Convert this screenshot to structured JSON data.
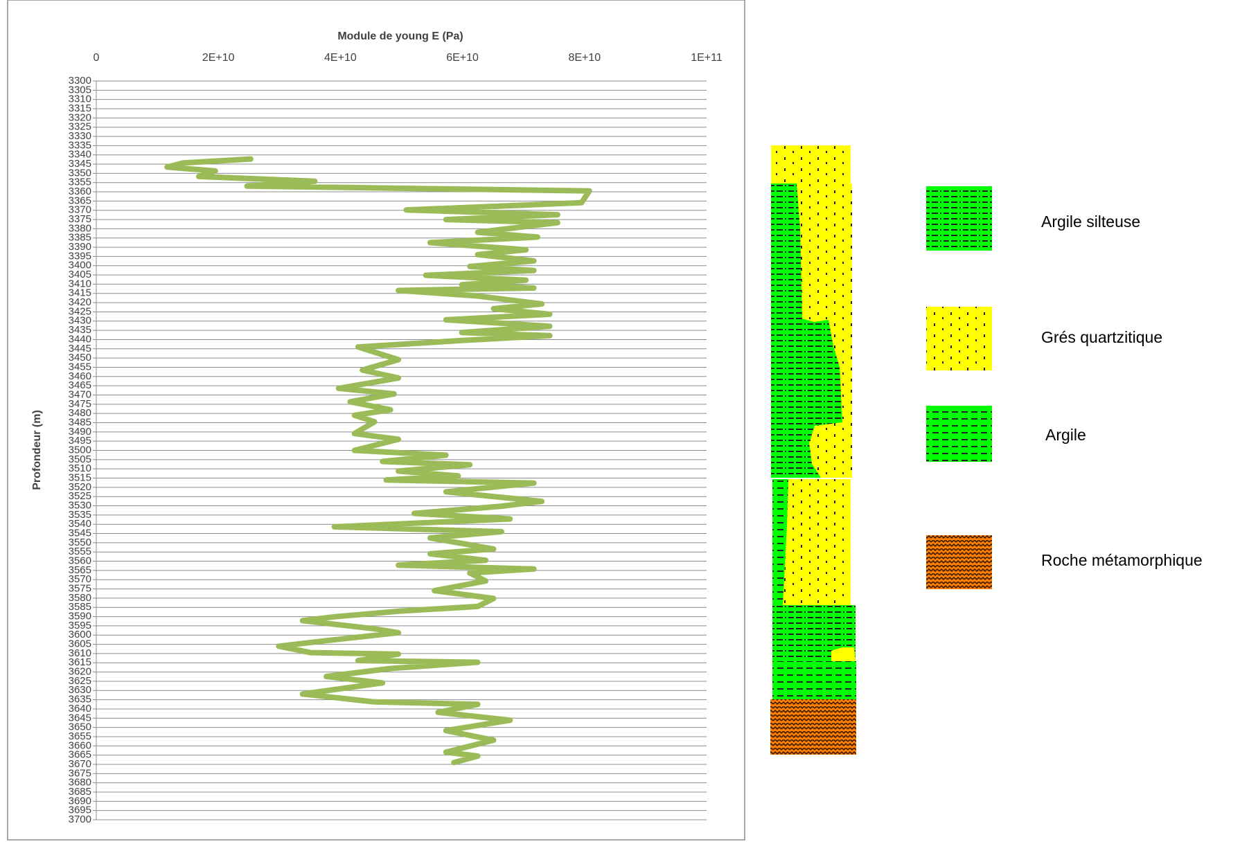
{
  "chart_data": {
    "type": "line",
    "title": "Module de young E (Pa)",
    "y_label": "Profondeur (m)",
    "color": "#9bbb59",
    "xlim": [
      0,
      100000000000
    ],
    "xticks": [
      0,
      {
        "value": 20000000000,
        "label": "2E+10"
      },
      {
        "value": 40000000000,
        "label": "4E+10"
      },
      {
        "value": 60000000000,
        "label": "6E+10"
      },
      {
        "value": 80000000000,
        "label": "8E+10"
      },
      {
        "value": 100000000000,
        "label": "1E+11"
      }
    ],
    "ylim": [
      3300,
      3700
    ],
    "y_inverted": true,
    "yticks": [
      3300,
      3305,
      3310,
      3315,
      3320,
      3325,
      3330,
      3335,
      3340,
      3345,
      3350,
      3355,
      3360,
      3365,
      3370,
      3375,
      3380,
      3385,
      3390,
      3395,
      3400,
      3405,
      3410,
      3415,
      3420,
      3425,
      3430,
      3435,
      3440,
      3445,
      3450,
      3455,
      3460,
      3465,
      3470,
      3475,
      3480,
      3485,
      3490,
      3495,
      3500,
      3505,
      3510,
      3515,
      3520,
      3525,
      3530,
      3535,
      3540,
      3545,
      3550,
      3555,
      3560,
      3565,
      3570,
      3575,
      3580,
      3585,
      3590,
      3595,
      3600,
      3605,
      3610,
      3615,
      3620,
      3625,
      3630,
      3635,
      3640,
      3645,
      3650,
      3655,
      3660,
      3665,
      3670,
      3675,
      3680,
      3685,
      3690,
      3695,
      3700
    ],
    "grid": true,
    "y": [
      3342.2,
      3344.4,
      3346.6,
      3348.7,
      3351.7,
      3354.3,
      3356.9,
      3359.5,
      3365.9,
      3369.8,
      3372.4,
      3375.0,
      3376.7,
      3381.9,
      3384.5,
      3387.5,
      3391.4,
      3394.0,
      3397.4,
      3400.4,
      3402.6,
      3405.2,
      3407.8,
      3410.3,
      3412.1,
      3413.4,
      3416.4,
      3420.7,
      3423.3,
      3426.3,
      3429.3,
      3432.8,
      3436.2,
      3437.9,
      3440.5,
      3444.0,
      3450.9,
      3456.5,
      3460.8,
      3466.4,
      3469.4,
      3473.7,
      3478.0,
      3481.0,
      3484.5,
      3490.9,
      3494.0,
      3500.0,
      3502.6,
      3506.0,
      3507.8,
      3511.2,
      3513.8,
      3516.0,
      3517.7,
      3522.4,
      3527.6,
      3530.2,
      3534.1,
      3537.1,
      3541.4,
      3544.0,
      3547.4,
      3553.4,
      3556.0,
      3559.5,
      3562.1,
      3564.2,
      3566.4,
      3570.7,
      3575.9,
      3580.2,
      3584.5,
      3587.1,
      3590.1,
      3592.2,
      3596.6,
      3598.7,
      3603.0,
      3606.0,
      3609.5,
      3610.3,
      3613.8,
      3614.7,
      3618.1,
      3622.4,
      3625.9,
      3631.9,
      3636.2,
      3637.5,
      3641.8,
      3646.1,
      3651.7,
      3656.9,
      3663.4,
      3665.5,
      3669.0
    ],
    "values": [
      25300000000,
      14200000000,
      11600000000,
      19500000000,
      16800000000,
      35800000000,
      24700000000,
      80800000000,
      79500000000,
      50800000000,
      75600000000,
      57300000000,
      75600000000,
      62500000000,
      72300000000,
      54700000000,
      70400000000,
      62500000000,
      71700000000,
      61200000000,
      71700000000,
      54000000000,
      70400000000,
      59900000000,
      71700000000,
      49500000000,
      62500000000,
      73000000000,
      65100000000,
      74300000000,
      57300000000,
      74300000000,
      59900000000,
      74300000000,
      59900000000,
      42900000000,
      49500000000,
      43600000000,
      49500000000,
      39700000000,
      48800000000,
      41600000000,
      48200000000,
      42300000000,
      45600000000,
      42300000000,
      49500000000,
      42300000000,
      57300000000,
      46900000000,
      61200000000,
      49500000000,
      59300000000,
      47500000000,
      71700000000,
      57300000000,
      73000000000,
      66400000000,
      52100000000,
      67800000000,
      39000000000,
      66400000000,
      54700000000,
      65100000000,
      54700000000,
      63800000000,
      49500000000,
      71700000000,
      61200000000,
      63800000000,
      55400000000,
      65100000000,
      62500000000,
      49500000000,
      39000000000,
      33800000000,
      45600000000,
      49500000000,
      37700000000,
      29900000000,
      35100000000,
      49500000000,
      42900000000,
      62500000000,
      48200000000,
      37700000000,
      46900000000,
      33800000000,
      45600000000,
      62500000000,
      56000000000,
      67800000000,
      57300000000,
      65100000000,
      57300000000,
      62500000000,
      58600000000
    ]
  },
  "lithology_legend": {
    "items": [
      {
        "label": "Argile silteuse"
      },
      {
        "label": "Grés quartzitique"
      },
      {
        "label": "Argile"
      },
      {
        "label": "Roche métamorphique"
      }
    ]
  }
}
